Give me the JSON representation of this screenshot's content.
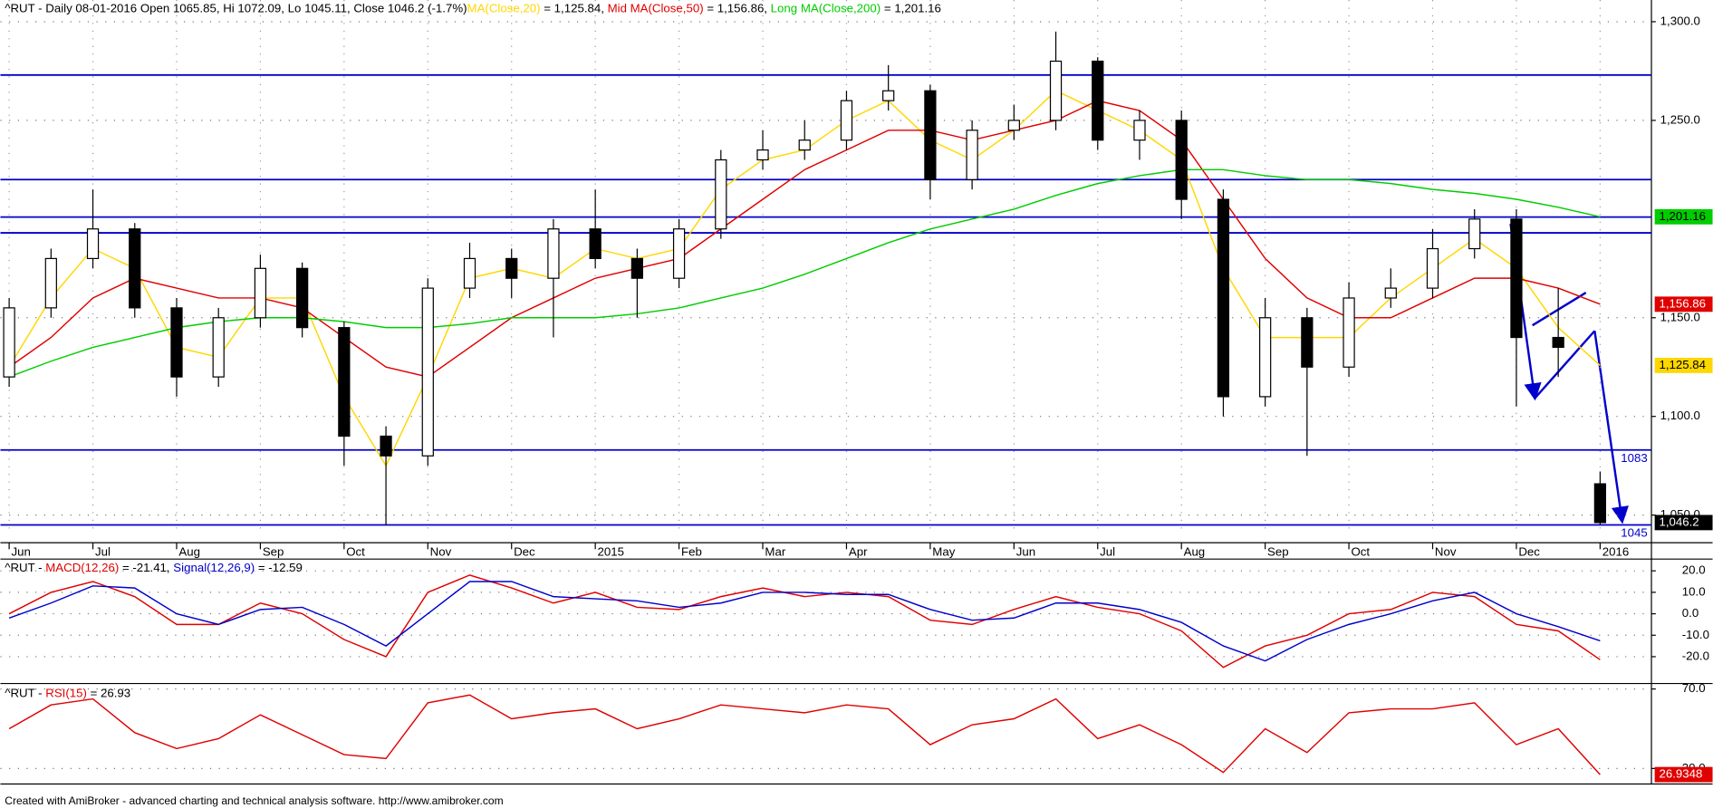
{
  "chart_data": [
    {
      "type": "candlestick",
      "quote": "^RUT - Daily 08-01-2016 Open 1065.85, Hi 1072.09, Lo 1045.11, Close 1046.2 (-1.7%)",
      "categories": [
        "Jun",
        null,
        "Jul",
        null,
        "Aug",
        null,
        "Sep",
        null,
        "Oct",
        null,
        "Nov",
        null,
        "Dec",
        null,
        "2015",
        null,
        "Feb",
        null,
        "Mar",
        null,
        "Apr",
        null,
        "May",
        null,
        "Jun",
        null,
        "Jul",
        null,
        "Aug",
        null,
        "Sep",
        null,
        "Oct",
        null,
        "Nov",
        null,
        "Dec",
        null,
        "2016"
      ],
      "open": [
        1120,
        1155,
        1180,
        1195,
        1155,
        1120,
        1150,
        1175,
        1145,
        1090,
        1080,
        1165,
        1180,
        1170,
        1195,
        1180,
        1170,
        1195,
        1230,
        1235,
        1240,
        1260,
        1265,
        1220,
        1245,
        1250,
        1280,
        1240,
        1250,
        1210,
        1110,
        1150,
        1125,
        1160,
        1165,
        1185,
        1200,
        1140,
        1065.85
      ],
      "high": [
        1160,
        1185,
        1215,
        1198,
        1160,
        1155,
        1182,
        1178,
        1148,
        1095,
        1170,
        1188,
        1185,
        1200,
        1215,
        1185,
        1200,
        1235,
        1245,
        1250,
        1265,
        1278,
        1268,
        1250,
        1258,
        1295,
        1282,
        1255,
        1255,
        1215,
        1160,
        1155,
        1168,
        1175,
        1195,
        1205,
        1205,
        1165,
        1072.09
      ],
      "low": [
        1115,
        1150,
        1175,
        1150,
        1110,
        1115,
        1145,
        1140,
        1075,
        1045,
        1075,
        1160,
        1160,
        1140,
        1175,
        1150,
        1165,
        1190,
        1225,
        1230,
        1235,
        1255,
        1210,
        1215,
        1240,
        1245,
        1235,
        1230,
        1200,
        1100,
        1105,
        1080,
        1120,
        1155,
        1160,
        1180,
        1105,
        1120,
        1045.11
      ],
      "close": [
        1155,
        1180,
        1195,
        1155,
        1120,
        1150,
        1175,
        1145,
        1090,
        1080,
        1165,
        1180,
        1170,
        1195,
        1180,
        1170,
        1195,
        1230,
        1235,
        1240,
        1260,
        1265,
        1220,
        1245,
        1250,
        1280,
        1240,
        1250,
        1210,
        1110,
        1150,
        1125,
        1160,
        1165,
        1185,
        1200,
        1140,
        1135,
        1046.2
      ],
      "close_badge": {
        "value": 1046.2,
        "label": "1,046.2"
      },
      "series": [
        {
          "name": "MA(Close,20)",
          "legend_value": " = 1,125.84, ",
          "color": "#ffd700",
          "badge": {
            "value": 1125.84,
            "label": "1,125.84"
          },
          "values": [
            1125,
            1160,
            1185,
            1175,
            1135,
            1130,
            1160,
            1160,
            1110,
            1075,
            1120,
            1170,
            1175,
            1170,
            1185,
            1180,
            1185,
            1215,
            1230,
            1235,
            1250,
            1260,
            1240,
            1230,
            1245,
            1265,
            1255,
            1245,
            1230,
            1175,
            1140,
            1140,
            1140,
            1160,
            1175,
            1190,
            1175,
            1145,
            1125.84
          ]
        },
        {
          "name": "Mid MA(Close,50)",
          "legend_value": " = 1,156.86, ",
          "color": "#e00000",
          "badge": {
            "value": 1156.86,
            "label": "1,156.86"
          },
          "values": [
            1125,
            1140,
            1160,
            1170,
            1165,
            1160,
            1160,
            1155,
            1140,
            1125,
            1120,
            1135,
            1150,
            1160,
            1170,
            1175,
            1180,
            1195,
            1210,
            1225,
            1235,
            1245,
            1245,
            1240,
            1245,
            1250,
            1260,
            1255,
            1240,
            1210,
            1180,
            1160,
            1150,
            1150,
            1160,
            1170,
            1170,
            1165,
            1156.86
          ]
        },
        {
          "name": "Long MA(Close,200)",
          "legend_value": " = 1,201.16",
          "color": "#00cc00",
          "badge": {
            "value": 1201.16,
            "label": "1,201.16"
          },
          "values": [
            1120,
            1128,
            1135,
            1140,
            1145,
            1148,
            1150,
            1150,
            1148,
            1145,
            1145,
            1147,
            1150,
            1150,
            1150,
            1152,
            1155,
            1160,
            1165,
            1172,
            1180,
            1188,
            1195,
            1200,
            1205,
            1212,
            1218,
            1222,
            1225,
            1225,
            1222,
            1220,
            1220,
            1218,
            1215,
            1213,
            1210,
            1206,
            1201.16
          ]
        }
      ],
      "levels": [
        1273,
        1220,
        1201,
        1193
      ],
      "labeled_levels": [
        1083,
        1045
      ],
      "level_color": "#0000cc",
      "ylim": [
        1041,
        1311
      ],
      "yticks": [
        {
          "value": 1050,
          "label": "1,050.0"
        },
        {
          "value": 1100,
          "label": "1,100.0"
        },
        {
          "value": 1150,
          "label": "1,150.0"
        },
        {
          "value": 1250,
          "label": "1,250.0"
        },
        {
          "value": 1300,
          "label": "1,300.0"
        }
      ],
      "grid": true
    },
    {
      "type": "line",
      "prefix": "^RUT - ",
      "series": [
        {
          "name": "MACD(12,26)",
          "legend_value": " = -21.41, ",
          "color": "#e00000",
          "values": [
            0,
            10,
            15,
            8,
            -5,
            -5,
            5,
            0,
            -12,
            -20,
            10,
            18,
            12,
            5,
            10,
            3,
            2,
            8,
            12,
            8,
            10,
            8,
            -3,
            -5,
            2,
            8,
            3,
            0,
            -8,
            -25,
            -15,
            -10,
            0,
            2,
            10,
            8,
            -5,
            -8,
            -21.41
          ]
        },
        {
          "name": "Signal(12,26,9)",
          "legend_value": " = -12.59",
          "color": "#0000cc",
          "values": [
            -2,
            5,
            13,
            12,
            0,
            -5,
            2,
            3,
            -5,
            -15,
            0,
            15,
            15,
            8,
            7,
            6,
            3,
            5,
            10,
            10,
            9,
            9,
            2,
            -3,
            -2,
            5,
            5,
            2,
            -4,
            -15,
            -22,
            -12,
            -5,
            0,
            6,
            10,
            0,
            -6,
            -12.59
          ]
        }
      ],
      "ylim": [
        -32,
        25.5
      ],
      "yticks": [
        {
          "value": 20,
          "label": "20.0"
        },
        {
          "value": 10,
          "label": "10.0"
        },
        {
          "value": 0,
          "label": "0.0"
        },
        {
          "value": -10,
          "label": "-10.0"
        },
        {
          "value": -20,
          "label": "-20.0"
        }
      ],
      "grid": true
    },
    {
      "type": "line",
      "prefix": "^RUT - ",
      "series": [
        {
          "name": "RSI(15)",
          "legend_value": " = 26.93",
          "color": "#e00000",
          "badge": {
            "value": 26.9348,
            "label": "26.9348"
          },
          "values": [
            50,
            62,
            65,
            48,
            40,
            45,
            57,
            47,
            37,
            35,
            63,
            67,
            55,
            58,
            60,
            50,
            55,
            62,
            60,
            58,
            62,
            60,
            42,
            52,
            55,
            65,
            45,
            52,
            42,
            28,
            50,
            38,
            58,
            60,
            60,
            63,
            42,
            50,
            26.93
          ]
        }
      ],
      "ylim": [
        23.3,
        72.2
      ],
      "yticks": [
        {
          "value": 70,
          "label": "70.0"
        },
        {
          "value": 30,
          "label": "30.0"
        }
      ],
      "grid": true
    }
  ],
  "footer": "Created with AmiBroker - advanced charting and technical analysis software. http://www.amibroker.com"
}
